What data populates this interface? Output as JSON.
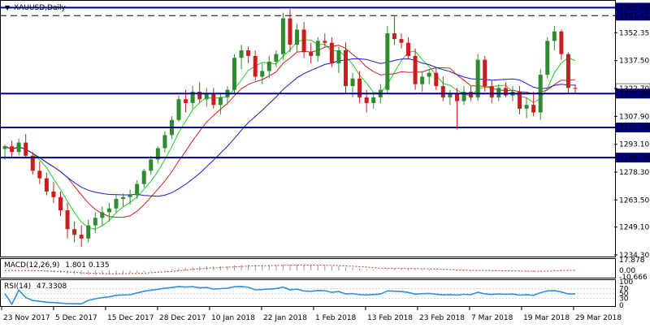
{
  "chart_data": {
    "type": "candlestick",
    "title": "XAUUSD,Daily",
    "y_range": [
      1234.3,
      1368.0
    ],
    "y_ticks": [
      "1365.66",
      "1361.41",
      "1352.35",
      "1337.50",
      "1322.70",
      "1320.00",
      "1307.90",
      "1302.00",
      "1293.10",
      "1286.00",
      "1278.30",
      "1263.50",
      "1249.10",
      "1234.30"
    ],
    "x_ticks": [
      "23 Nov 2017",
      "5 Dec 2017",
      "15 Dec 2017",
      "28 Dec 2017",
      "10 Jan 2018",
      "22 Jan 2018",
      "1 Feb 2018",
      "13 Feb 2018",
      "23 Feb 2018",
      "7 Mar 2018",
      "19 Mar 2018",
      "29 Mar 2018"
    ],
    "horizontal_levels": [
      {
        "value": 1365.66,
        "style": "solid",
        "color": "#000080"
      },
      {
        "value": 1361.41,
        "style": "dashed",
        "color": "#000000"
      },
      {
        "value": 1320.0,
        "style": "solid",
        "color": "#000080"
      },
      {
        "value": 1302.0,
        "style": "solid",
        "color": "#000080"
      },
      {
        "value": 1286.0,
        "style": "solid",
        "color": "#000080"
      }
    ],
    "current_price": "1322.70",
    "colors": {
      "bull": "#2e8b2e",
      "bear": "#c81e1e",
      "ma_fast": "#22cc22",
      "ma_mid": "#cc2222",
      "ma_slow": "#1a1acc",
      "level_line": "#000080",
      "macd": "#cc3333",
      "rsi": "#2f8fdf"
    },
    "candles": [
      [
        1290.6,
        1293.0,
        1285.0,
        1292.0
      ],
      [
        1292.0,
        1295.0,
        1286.0,
        1289.0
      ],
      [
        1289.0,
        1296.0,
        1287.0,
        1294.0
      ],
      [
        1294.0,
        1298.5,
        1286.0,
        1287.0
      ],
      [
        1287.0,
        1289.0,
        1277.0,
        1279.0
      ],
      [
        1279.0,
        1284.0,
        1272.0,
        1275.0
      ],
      [
        1275.0,
        1278.0,
        1266.0,
        1268.0
      ],
      [
        1268.0,
        1273.0,
        1262.0,
        1265.0
      ],
      [
        1265.0,
        1268.0,
        1255.0,
        1258.0
      ],
      [
        1258.0,
        1262.0,
        1243.0,
        1248.0
      ],
      [
        1248.0,
        1252.0,
        1241.0,
        1245.0
      ],
      [
        1245.0,
        1250.0,
        1238.5,
        1243.0
      ],
      [
        1243.0,
        1253.0,
        1241.0,
        1250.0
      ],
      [
        1250.0,
        1257.0,
        1246.0,
        1254.0
      ],
      [
        1254.0,
        1260.0,
        1250.0,
        1257.0
      ],
      [
        1257.0,
        1262.0,
        1252.0,
        1259.0
      ],
      [
        1259.0,
        1266.0,
        1257.0,
        1264.0
      ],
      [
        1264.0,
        1267.0,
        1260.0,
        1265.0
      ],
      [
        1265.0,
        1269.0,
        1261.0,
        1266.0
      ],
      [
        1266.0,
        1274.0,
        1264.0,
        1272.0
      ],
      [
        1272.0,
        1280.0,
        1270.0,
        1279.0
      ],
      [
        1279.0,
        1287.0,
        1277.0,
        1285.0
      ],
      [
        1285.0,
        1292.0,
        1283.0,
        1291.0
      ],
      [
        1291.0,
        1300.0,
        1289.0,
        1298.0
      ],
      [
        1298.0,
        1308.0,
        1296.0,
        1306.0
      ],
      [
        1306.0,
        1319.0,
        1305.0,
        1317.0
      ],
      [
        1317.0,
        1322.0,
        1310.0,
        1315.0
      ],
      [
        1315.0,
        1324.0,
        1312.0,
        1321.0
      ],
      [
        1321.0,
        1326.0,
        1315.0,
        1317.0
      ],
      [
        1317.0,
        1323.0,
        1313.0,
        1320.0
      ],
      [
        1320.0,
        1323.0,
        1312.0,
        1314.0
      ],
      [
        1314.0,
        1320.0,
        1309.0,
        1318.0
      ],
      [
        1318.0,
        1324.0,
        1314.0,
        1322.0
      ],
      [
        1322.0,
        1341.0,
        1320.0,
        1339.0
      ],
      [
        1339.0,
        1346.0,
        1333.0,
        1343.0
      ],
      [
        1343.0,
        1345.0,
        1336.0,
        1340.0
      ],
      [
        1340.0,
        1343.0,
        1327.0,
        1329.0
      ],
      [
        1329.0,
        1336.0,
        1325.0,
        1332.0
      ],
      [
        1332.0,
        1340.0,
        1328.0,
        1337.0
      ],
      [
        1337.0,
        1343.0,
        1334.0,
        1341.0
      ],
      [
        1341.0,
        1363.0,
        1338.0,
        1360.0
      ],
      [
        1360.0,
        1365.0,
        1342.0,
        1346.0
      ],
      [
        1346.0,
        1357.0,
        1342.0,
        1354.0
      ],
      [
        1354.0,
        1358.0,
        1339.0,
        1342.0
      ],
      [
        1342.0,
        1347.0,
        1336.0,
        1340.0
      ],
      [
        1340.0,
        1350.0,
        1337.0,
        1348.0
      ],
      [
        1348.0,
        1352.0,
        1345.0,
        1347.0
      ],
      [
        1347.0,
        1350.0,
        1334.0,
        1336.0
      ],
      [
        1336.0,
        1345.0,
        1331.0,
        1343.0
      ],
      [
        1343.0,
        1347.0,
        1320.0,
        1324.0
      ],
      [
        1324.0,
        1331.0,
        1318.0,
        1328.0
      ],
      [
        1328.0,
        1332.0,
        1315.0,
        1318.0
      ],
      [
        1318.0,
        1322.0,
        1310.0,
        1315.0
      ],
      [
        1315.0,
        1320.0,
        1312.0,
        1318.0
      ],
      [
        1318.0,
        1325.0,
        1315.0,
        1322.0
      ],
      [
        1322.0,
        1356.0,
        1320.0,
        1352.0
      ],
      [
        1352.0,
        1361.0,
        1346.0,
        1349.0
      ],
      [
        1349.0,
        1352.0,
        1344.0,
        1347.0
      ],
      [
        1347.0,
        1350.0,
        1338.0,
        1340.0
      ],
      [
        1340.0,
        1344.0,
        1322.0,
        1325.0
      ],
      [
        1325.0,
        1332.0,
        1321.0,
        1329.0
      ],
      [
        1329.0,
        1333.0,
        1325.0,
        1331.0
      ],
      [
        1331.0,
        1334.0,
        1322.0,
        1324.0
      ],
      [
        1324.0,
        1329.0,
        1316.0,
        1318.0
      ],
      [
        1318.0,
        1322.0,
        1314.0,
        1320.0
      ],
      [
        1320.0,
        1323.0,
        1301.0,
        1316.0
      ],
      [
        1316.0,
        1324.0,
        1314.0,
        1321.0
      ],
      [
        1321.0,
        1324.0,
        1316.0,
        1318.0
      ],
      [
        1318.0,
        1341.0,
        1316.0,
        1338.0
      ],
      [
        1338.0,
        1340.0,
        1321.0,
        1324.0
      ],
      [
        1324.0,
        1327.0,
        1315.0,
        1318.0
      ],
      [
        1318.0,
        1325.0,
        1316.0,
        1323.0
      ],
      [
        1323.0,
        1326.0,
        1318.0,
        1319.0
      ],
      [
        1319.0,
        1324.0,
        1316.0,
        1321.0
      ],
      [
        1321.0,
        1324.0,
        1309.0,
        1312.0
      ],
      [
        1312.0,
        1318.0,
        1307.0,
        1314.0
      ],
      [
        1314.0,
        1321.0,
        1308.0,
        1310.0
      ],
      [
        1310.0,
        1333.0,
        1306.0,
        1330.0
      ],
      [
        1330.0,
        1350.0,
        1328.0,
        1348.0
      ],
      [
        1348.0,
        1356.0,
        1343.0,
        1353.0
      ],
      [
        1353.0,
        1354.0,
        1338.0,
        1341.0
      ],
      [
        1341.0,
        1342.0,
        1320.0,
        1323.0
      ],
      [
        1323.0,
        1325.0,
        1320.0,
        1322.7
      ]
    ],
    "indicators": [
      {
        "name": "MACD(12,26,9)",
        "values_text": "1.801 0.135",
        "ticks": [
          "17.878",
          "0.00",
          "-10.666"
        ]
      },
      {
        "name": "RSI(14)",
        "values_text": "47.3308",
        "ticks": [
          "100",
          "70",
          "50",
          "30",
          "0"
        ]
      }
    ]
  }
}
